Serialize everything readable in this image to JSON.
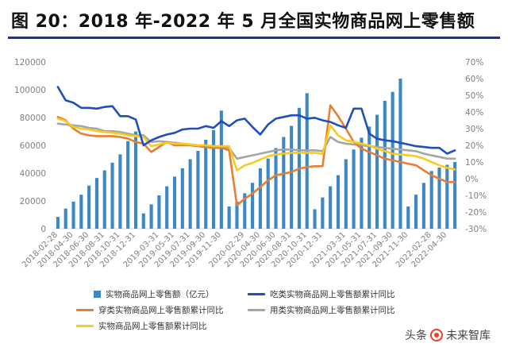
{
  "header": {
    "title": "图 20：2018 年-2022 年 5 月全国实物商品网上零售额"
  },
  "watermark": {
    "prefix": "头条",
    "name": "未来智库"
  },
  "colors": {
    "bar": "#3d87c4",
    "food": "#1f4fbf",
    "clothing": "#e67e35",
    "daily": "#a5a5a5",
    "total": "#f7cc1e",
    "grid": "#d9d9d9",
    "axis_text": "#808080"
  },
  "chart_data": {
    "type": "bar",
    "x": [
      "2018-02",
      "2018-03",
      "2018-04",
      "2018-05",
      "2018-06",
      "2018-07",
      "2018-08",
      "2018-09",
      "2018-10",
      "2018-11",
      "2018-12",
      "2019-01",
      "2019-02",
      "2019-03",
      "2019-04",
      "2019-05",
      "2019-06",
      "2019-07",
      "2019-08",
      "2019-09",
      "2019-10",
      "2019-11",
      "2019-12",
      "2020-01",
      "2020-02",
      "2020-03",
      "2020-04",
      "2020-05",
      "2020-06",
      "2020-07",
      "2020-08",
      "2020-09",
      "2020-10",
      "2020-11",
      "2020-12",
      "2021-01",
      "2021-02",
      "2021-03",
      "2021-04",
      "2021-05",
      "2021-06",
      "2021-07",
      "2021-08",
      "2021-09",
      "2021-10",
      "2021-11",
      "2021-12",
      "2022-01",
      "2022-02",
      "2022-03",
      "2022-04",
      "2022-05"
    ],
    "xtick_labels": [
      "2018-02-28",
      "2018-04-30",
      "2018-06-30",
      "2018-08-31",
      "2018-10-31",
      "2018-12-31",
      "2019-03-31",
      "2019-05-31",
      "2019-07-31",
      "2019-09-30",
      "2019-11-30",
      "2020-02-29",
      "2020-04-30",
      "2020-06-30",
      "2020-08-31",
      "2020-10-31",
      "2020-12-31",
      "2021-03-31",
      "2021-05-31",
      "2021-07-31",
      "2021-09-30",
      "2021-11-30",
      "2022-02-28",
      "2022-04-30"
    ],
    "y_left": {
      "ticks": [
        "0",
        "20000",
        "40000",
        "60000",
        "80000",
        "100000",
        "120000"
      ],
      "lim": [
        0,
        120000
      ]
    },
    "y_right": {
      "ticks": [
        "-30%",
        "-20%",
        "-10%",
        "0%",
        "10%",
        "20%",
        "30%",
        "40%",
        "50%",
        "60%",
        "70%"
      ],
      "lim": [
        -30,
        70
      ]
    },
    "grid": false,
    "legend_position": "bottom",
    "series": [
      {
        "name": "实物商品网上零售额（亿元）",
        "type": "bar",
        "axis": "left",
        "values": [
          8500,
          14500,
          19500,
          24500,
          31000,
          36500,
          42000,
          47500,
          53500,
          63000,
          70000,
          11000,
          17500,
          24000,
          30500,
          37500,
          43500,
          50000,
          56000,
          64000,
          71000,
          85000,
          16000,
          19500,
          25500,
          33000,
          43500,
          50500,
          58000,
          66000,
          74000,
          87000,
          97500,
          14000,
          22500,
          30500,
          38500,
          50000,
          57000,
          65500,
          73500,
          82000,
          92000,
          98500,
          108000,
          16000,
          24500,
          33000,
          41500,
          44000,
          46000,
          48000
        ]
      },
      {
        "name": "吃类实物商品网上零售额累计同比",
        "type": "line",
        "axis": "right",
        "unit": "%",
        "values": [
          55,
          47,
          45.5,
          42.5,
          42.5,
          42,
          43,
          43.5,
          37.5,
          37.5,
          35.5,
          20,
          23,
          25,
          26.5,
          27.5,
          29.5,
          30,
          30,
          31.5,
          30.5,
          34.5,
          31.5,
          35,
          36,
          31,
          26.5,
          32.5,
          36,
          37,
          38,
          38,
          36,
          36.5,
          35,
          34,
          32,
          30.5,
          42,
          42,
          27,
          24,
          23,
          22.5,
          21.5,
          20.5,
          19.5,
          19,
          18.5,
          18.5,
          15,
          17
        ]
      },
      {
        "name": "穿类实物商品网上零售额累计同比",
        "type": "line",
        "axis": "right",
        "unit": "%",
        "values": [
          37,
          35,
          30,
          27,
          26,
          25.5,
          25.5,
          25.5,
          25,
          24,
          22,
          21,
          16,
          19,
          22,
          20,
          20,
          20,
          19.5,
          19,
          18.5,
          18.5,
          17,
          -16,
          -12,
          -9,
          -5,
          -1,
          2,
          3,
          4,
          6,
          7,
          7.5,
          7.5,
          44,
          37.5,
          30,
          22,
          18,
          16,
          14,
          12,
          11,
          10,
          9,
          8,
          5,
          2,
          0,
          -2,
          -2
        ]
      },
      {
        "name": "用类实物商品网上零售额累计同比",
        "type": "line",
        "axis": "right",
        "unit": "%",
        "values": [
          33,
          32.5,
          32,
          31.5,
          30.5,
          30,
          28.5,
          28.5,
          28,
          27,
          26,
          26,
          22,
          22.5,
          22,
          21.5,
          21,
          20.5,
          20,
          20,
          19,
          19,
          18.5,
          12,
          13,
          14,
          15,
          16,
          17,
          17.5,
          17.5,
          17,
          17,
          17,
          16.5,
          25,
          22,
          21,
          20.5,
          20,
          19.5,
          19,
          18.5,
          18,
          17.5,
          17,
          16.5,
          15,
          14,
          13,
          12,
          12
        ]
      },
      {
        "name": "实物商品网上零售额累计同比",
        "type": "line",
        "axis": "right",
        "unit": "%",
        "values": [
          36,
          34.5,
          31,
          30,
          29.5,
          28.5,
          28,
          27.5,
          27,
          26,
          25.5,
          25,
          19.5,
          20.5,
          21.5,
          21,
          21,
          20.5,
          20,
          20,
          19.5,
          19.5,
          19.5,
          5,
          8,
          9.5,
          11.5,
          13.5,
          14.5,
          15,
          15.5,
          15.5,
          15.5,
          15.5,
          14.8,
          32,
          26,
          23,
          22,
          21,
          20,
          18,
          16.5,
          15,
          14.5,
          14,
          13.5,
          12,
          10,
          8,
          6.5,
          5.5
        ]
      }
    ]
  }
}
